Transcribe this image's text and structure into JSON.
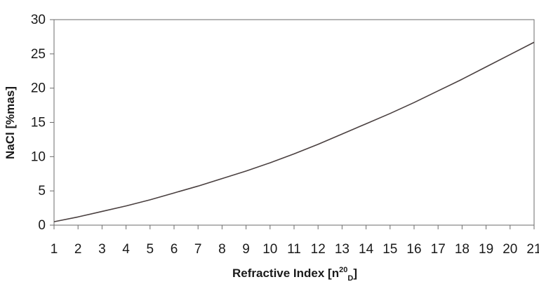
{
  "chart_data": {
    "type": "line",
    "title": "",
    "xlabel": "Refractive Index [n",
    "xlabel_sup": "20",
    "xlabel_sub": "D",
    "xlabel_end": "]",
    "ylabel": "NaCl [%mas]",
    "x_ticks": [
      "1",
      "2",
      "3",
      "4",
      "5",
      "6",
      "7",
      "8",
      "9",
      "10",
      "11",
      "12",
      "13",
      "14",
      "15",
      "16",
      "17",
      "18",
      "19",
      "20",
      "21"
    ],
    "y_ticks": [
      "0",
      "5",
      "10",
      "15",
      "20",
      "25",
      "30"
    ],
    "xlim": [
      1,
      21
    ],
    "ylim": [
      0,
      30
    ],
    "grid": false,
    "legend": "none",
    "line_color": "#4a4040",
    "series": [
      {
        "x": [
          1,
          2,
          3,
          4,
          5,
          6,
          7,
          8,
          9,
          10,
          11,
          12,
          13,
          14,
          15,
          16,
          17,
          18,
          19,
          20,
          21
        ],
        "y": [
          0.5,
          1.2,
          2.0,
          2.8,
          3.7,
          4.7,
          5.7,
          6.8,
          7.9,
          9.1,
          10.4,
          11.8,
          13.3,
          14.8,
          16.3,
          17.9,
          19.6,
          21.3,
          23.1,
          24.9,
          26.7
        ]
      }
    ]
  }
}
